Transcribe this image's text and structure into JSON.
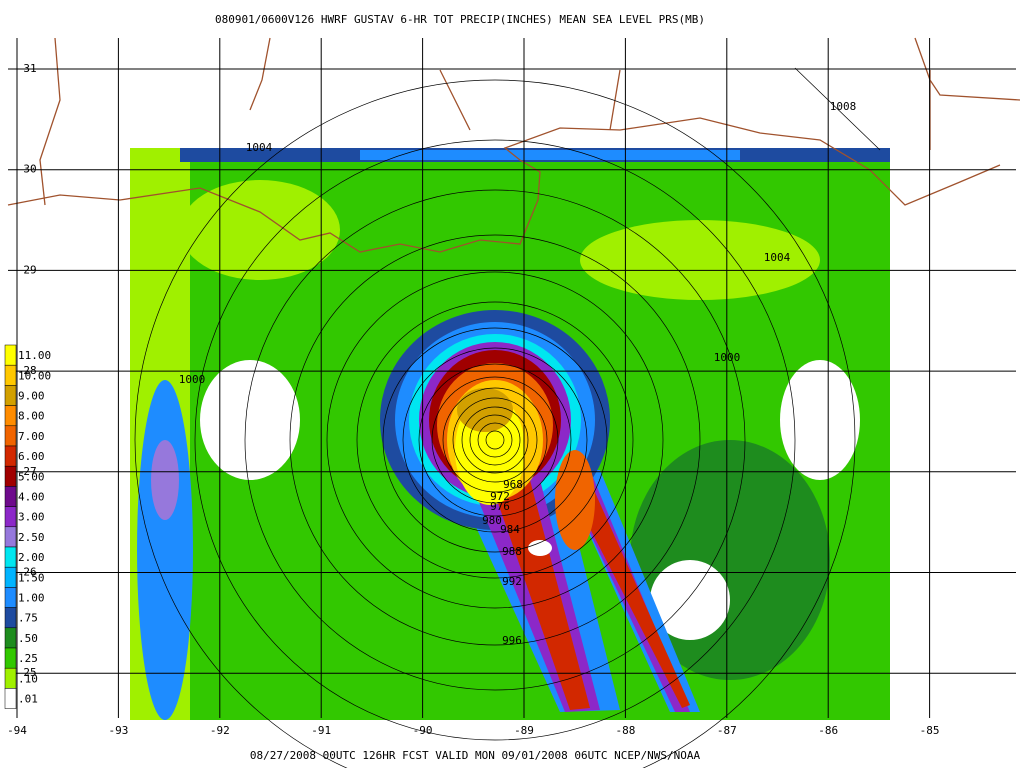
{
  "header": {
    "title": "080901/0600V126 HWRF GUSTAV 6-HR TOT PRECIP(INCHES) MEAN SEA LEVEL PRS(MB)"
  },
  "footer": {
    "text": "08/27/2008 00UTC 126HR FCST VALID MON 09/01/2008 06UTC  NCEP/NWS/NOAA"
  },
  "map": {
    "lon_ticks": [
      -94,
      -93,
      -92,
      -91,
      -90,
      -89,
      -88,
      -87,
      -86,
      -85
    ],
    "lat_ticks": [
      31,
      30,
      29,
      28,
      27,
      26,
      25
    ],
    "legend": {
      "labels": [
        "11.00",
        "10.00",
        "9.00",
        "8.00",
        "7.00",
        "6.00",
        "5.00",
        "4.00",
        "3.00",
        "2.50",
        "2.00",
        "1.50",
        "1.00",
        ".75",
        ".50",
        ".25",
        ".10",
        ".01"
      ],
      "colors": [
        "#ffff00",
        "#ffc800",
        "#d2a000",
        "#ff8c00",
        "#f06400",
        "#d22800",
        "#a00000",
        "#6e0a8c",
        "#8c28c8",
        "#9678dc",
        "#00e6f0",
        "#00b4ff",
        "#1e8cff",
        "#1e4ba0",
        "#1e8c1e",
        "#32c800",
        "#a0f000",
        "#ffffff"
      ]
    },
    "isobar_labels": [
      1008,
      1004,
      1004,
      1000,
      1000,
      996,
      992,
      988,
      984,
      980,
      976,
      972,
      968
    ]
  }
}
